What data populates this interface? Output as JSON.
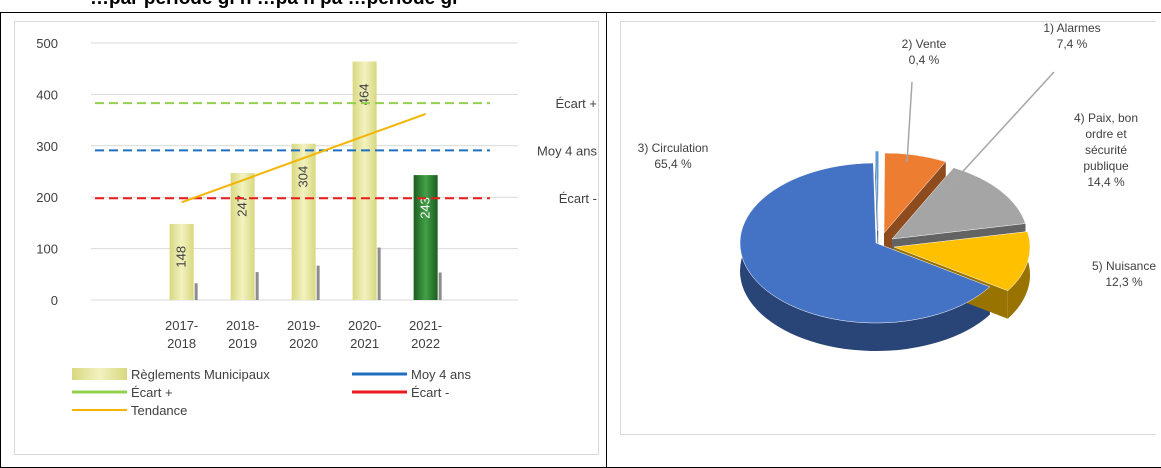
{
  "header": {
    "left_text": "…par période  gl                   n …pa          n   pa       …période  gl",
    "right_text": ""
  },
  "chart_data": [
    {
      "type": "bar",
      "categories": [
        "2017-\n2018",
        "2018-\n2019",
        "2019-\n2020",
        "2020-\n2021",
        "2021-\n2022"
      ],
      "series": [
        {
          "name": "Règlements Municipaux",
          "values": [
            148,
            247,
            304,
            464,
            243
          ],
          "color": "#e6e6a0"
        }
      ],
      "bar_labels": [
        "148",
        "247",
        "304",
        "464",
        "243"
      ],
      "highlight_color": "#2e7d32",
      "ylim": [
        0,
        500
      ],
      "yticks": [
        "0",
        "100",
        "200",
        "300",
        "400",
        "500"
      ],
      "grid": true,
      "lines": [
        {
          "name": "Écart +",
          "value": 383,
          "color": "#92d050",
          "dash": true,
          "label": "Écart +"
        },
        {
          "name": "Moy 4 ans",
          "value": 291,
          "color": "#1f6fc1",
          "dash": true,
          "label": "Moy 4 ans"
        },
        {
          "name": "Écart -",
          "value": 198,
          "color": "#e81c1c",
          "dash": true,
          "label": "Écart -"
        }
      ],
      "trend": {
        "name": "Tendance",
        "start": 190,
        "end": 362,
        "color": "#f4b400"
      },
      "legend": [
        {
          "label": "Règlements Municipaux",
          "type": "bar",
          "color": "#e6e6a0"
        },
        {
          "label": "Moy 4 ans",
          "type": "line",
          "color": "#1f6fc1"
        },
        {
          "label": "Écart +",
          "type": "line",
          "color": "#92d050"
        },
        {
          "label": "Écart -",
          "type": "line",
          "color": "#e81c1c"
        },
        {
          "label": "Tendance",
          "type": "thinline",
          "color": "#f4b400"
        }
      ],
      "legend_position": "bottom"
    },
    {
      "type": "pie",
      "slices": [
        {
          "name": "Alarmes",
          "label_lines": [
            "1) Alarmes",
            "7,4 %"
          ],
          "value": 7.4,
          "color": "#ed7d31"
        },
        {
          "name": "Vente",
          "label_lines": [
            "2) Vente",
            "0,4 %"
          ],
          "value": 0.4,
          "color": "#5b9bd5"
        },
        {
          "name": "Circulation",
          "label_lines": [
            "3) Circulation",
            "65,4 %"
          ],
          "value": 65.4,
          "color": "#4472c4"
        },
        {
          "name": "Paix, bon ordre et sécurité publique",
          "label_lines": [
            "4) Paix, bon",
            "ordre et",
            "sécurité",
            "publique",
            "14,4 %"
          ],
          "value": 14.4,
          "color": "#a5a5a5"
        },
        {
          "name": "Nuisance",
          "label_lines": [
            "5) Nuisance",
            "12,3 %"
          ],
          "value": 12.3,
          "color": "#ffc000"
        }
      ],
      "style": "3d-exploded"
    }
  ]
}
